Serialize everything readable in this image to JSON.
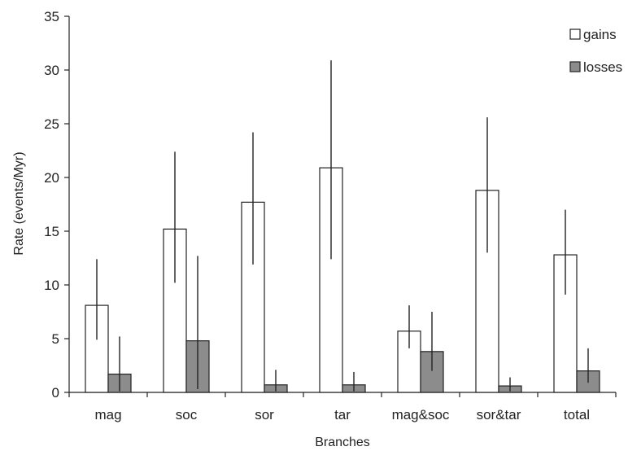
{
  "chart_data": {
    "type": "bar",
    "title": "",
    "xlabel": "Branches",
    "ylabel": "Rate (events/Myr)",
    "ylim": [
      0,
      35
    ],
    "yticks": [
      0,
      5,
      10,
      15,
      20,
      25,
      30,
      35
    ],
    "categories": [
      "mag",
      "soc",
      "sor",
      "tar",
      "mag&soc",
      "sor&tar",
      "total"
    ],
    "series": [
      {
        "name": "gains",
        "color": "#ffffff",
        "values": [
          8.1,
          15.2,
          17.7,
          20.9,
          5.7,
          18.8,
          12.8
        ],
        "error_low": [
          4.9,
          10.2,
          11.9,
          12.4,
          4.1,
          13.0,
          9.1
        ],
        "error_high": [
          12.4,
          22.4,
          24.2,
          30.9,
          8.1,
          25.6,
          17.0
        ]
      },
      {
        "name": "losses",
        "color": "#8c8c8c",
        "values": [
          1.7,
          4.8,
          0.7,
          0.7,
          3.8,
          0.6,
          2.0
        ],
        "error_low": [
          0.1,
          0.3,
          0.1,
          0.1,
          2.0,
          0.1,
          0.9
        ],
        "error_high": [
          5.2,
          12.7,
          2.1,
          1.9,
          7.5,
          1.4,
          4.1
        ]
      }
    ],
    "legend_position": "top-right",
    "grid": false
  }
}
